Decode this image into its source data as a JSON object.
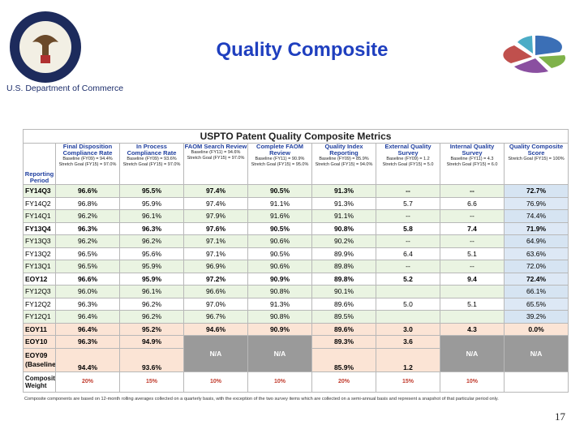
{
  "header": {
    "title": "Quality Composite",
    "subtitle": "U.S. Department of Commerce"
  },
  "table": {
    "title": "USPTO Patent Quality Composite Metrics",
    "period_label": "Reporting Period",
    "columns": [
      {
        "name": "Final Disposition Compliance Rate",
        "baseline": "Baseline (FY09) = 94.4%",
        "goal": "Stretch Goal (FY15) = 97.0%"
      },
      {
        "name": "In Process Compliance Rate",
        "baseline": "Baseline (FY09) = 93.6%",
        "goal": "Stretch Goal (FY15) = 97.0%"
      },
      {
        "name": "FAOM Search Review",
        "baseline": "Baseline (FY11) = 94.6%",
        "goal": "Stretch Goal (FY15) = 97.0%"
      },
      {
        "name": "Complete FAOM Review",
        "baseline": "Baseline (FY11) = 90.9%",
        "goal": "Stretch Goal (FY15) = 95.0%"
      },
      {
        "name": "Quality Index Reporting",
        "baseline": "Baseline (FY09) = 85.9%",
        "goal": "Stretch Goal (FY15) = 94.0%"
      },
      {
        "name": "External Quality Survey",
        "baseline": "Baseline (FY09) = 1.2",
        "goal": "Stretch Goal (FY15) = 5.0"
      },
      {
        "name": "Internal Quality Survey",
        "baseline": "Baseline (FY11) = 4.3",
        "goal": "Stretch Goal (FY15) = 6.0"
      },
      {
        "name": "Quality Composite Score",
        "goal": "Stretch Goal (FY15) = 100%"
      }
    ],
    "rows": [
      {
        "period": "FY14Q3",
        "cells": [
          "96.6%",
          "95.5%",
          "97.4%",
          "90.5%",
          "91.3%",
          "--",
          "--",
          "72.7%"
        ]
      },
      {
        "period": "FY14Q2",
        "cells": [
          "96.8%",
          "95.9%",
          "97.4%",
          "91.1%",
          "91.3%",
          "5.7",
          "6.6",
          "76.9%"
        ]
      },
      {
        "period": "FY14Q1",
        "cells": [
          "96.2%",
          "96.1%",
          "97.9%",
          "91.6%",
          "91.1%",
          "--",
          "--",
          "74.4%"
        ]
      },
      {
        "period": "FY13Q4",
        "cells": [
          "96.3%",
          "96.3%",
          "97.6%",
          "90.5%",
          "90.8%",
          "5.8",
          "7.4",
          "71.9%"
        ]
      },
      {
        "period": "FY13Q3",
        "cells": [
          "96.2%",
          "96.2%",
          "97.1%",
          "90.6%",
          "90.2%",
          "--",
          "--",
          "64.9%"
        ]
      },
      {
        "period": "FY13Q2",
        "cells": [
          "96.5%",
          "95.6%",
          "97.1%",
          "90.5%",
          "89.9%",
          "6.4",
          "5.1",
          "63.6%"
        ]
      },
      {
        "period": "FY13Q1",
        "cells": [
          "96.5%",
          "95.9%",
          "96.9%",
          "90.6%",
          "89.8%",
          "--",
          "--",
          "72.0%"
        ]
      },
      {
        "period": "EOY12",
        "cells": [
          "96.6%",
          "95.9%",
          "97.2%",
          "90.9%",
          "89.8%",
          "5.2",
          "9.4",
          "72.4%"
        ]
      },
      {
        "period": "FY12Q3",
        "cells": [
          "96.0%",
          "96.1%",
          "96.6%",
          "90.8%",
          "90.1%",
          null,
          null,
          "66.1%"
        ]
      },
      {
        "period": "FY12Q2",
        "cells": [
          "96.3%",
          "96.2%",
          "97.0%",
          "91.3%",
          "89.6%",
          "5.0",
          "5.1",
          "65.5%"
        ]
      },
      {
        "period": "FY12Q1",
        "cells": [
          "96.4%",
          "96.2%",
          "96.7%",
          "90.8%",
          "89.5%",
          null,
          null,
          "39.2%"
        ]
      },
      {
        "period": "EOY11",
        "cells": [
          "96.4%",
          "95.2%",
          "94.6%",
          "90.9%",
          "89.6%",
          "3.0",
          "4.3",
          "0.0%"
        ]
      },
      {
        "period": "EOY10",
        "cells": [
          "96.3%",
          "94.9%",
          "N/A",
          "N/A",
          "89.3%",
          "3.6",
          "N/A",
          "N/A"
        ]
      },
      {
        "period": "EOY09 (Baseline)",
        "cells": [
          "94.4%",
          "93.6%",
          null,
          null,
          "85.9%",
          "1.2",
          null,
          null
        ]
      }
    ],
    "weight": {
      "label": "Composite Weight",
      "cells": [
        "20%",
        "15%",
        "10%",
        "10%",
        "20%",
        "15%",
        "10%",
        null
      ]
    },
    "footnote": "Composite components are based on 12-month rolling averages collected on a quarterly basis, with the exception of the two survey items which are collected on a semi-annual basis and represent a snapshot of that particular period only."
  },
  "page_number": "17"
}
